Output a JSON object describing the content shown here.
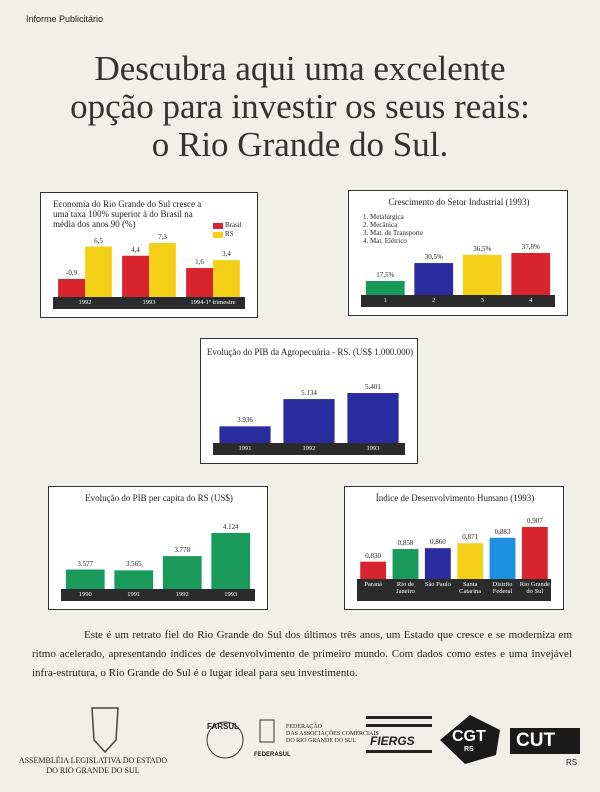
{
  "header": {
    "tag": "Informe Publicitário",
    "headline": [
      "Descubra aqui uma excelente",
      "opção para investir os seus reais:",
      "o Rio Grande do Sul."
    ]
  },
  "chart_data": [
    {
      "type": "bar",
      "title": "Economia do Rio Grande do Sul cresce a uma taxa 100% superior à do Brasil na média dos anos 90 (%)",
      "categories": [
        "1992",
        "1993",
        "1994-1º trimestre"
      ],
      "series": [
        {
          "name": "Brasil",
          "color": "#d8242c",
          "values": [
            -0.9,
            4.4,
            1.6
          ],
          "value_labels": [
            "-0,9",
            "4,4",
            "1,6"
          ]
        },
        {
          "name": "RS",
          "color": "#f4d018",
          "values": [
            6.5,
            7.3,
            3.4
          ],
          "value_labels": [
            "6,5",
            "7,3",
            "3,4"
          ]
        }
      ]
    },
    {
      "type": "bar",
      "title": "Crescimento do Setor Industrial (1993)",
      "legend_items": [
        "1. Metalúrgica",
        "2. Mecânica",
        "3. Mat. de Transporte",
        "4. Mat. Elétrico"
      ],
      "categories": [
        "1",
        "2",
        "3",
        "4"
      ],
      "values": [
        17.5,
        30.5,
        36.5,
        37.8
      ],
      "value_labels": [
        "17,5%",
        "30,5%",
        "36,5%",
        "37,8%"
      ],
      "colors": [
        "#1a9a5a",
        "#2a2ca0",
        "#f4d018",
        "#d8242c"
      ]
    },
    {
      "type": "bar",
      "title": "Evolução do PIB da Agropecuária - RS. (US$ 1.000.000)",
      "categories": [
        "1991",
        "1992",
        "1993"
      ],
      "values": [
        3936,
        5134,
        5401
      ],
      "value_labels": [
        "3.936",
        "5.134",
        "5.401"
      ],
      "color": "#2a2ca0"
    },
    {
      "type": "bar",
      "title": "Evolução do PIB per capita do RS (US$)",
      "categories": [
        "1990",
        "1991",
        "1992",
        "1993"
      ],
      "values": [
        3577,
        3565,
        3778,
        4124
      ],
      "value_labels": [
        "3.577",
        "3.565",
        "3.778",
        "4.124"
      ],
      "color": "#1a9a5a"
    },
    {
      "type": "bar",
      "title": "Índice de Desenvolvimento Humano (1993)",
      "categories": [
        "Paraná",
        "Rio de Janeiro",
        "São Paulo",
        "Santa Catarina",
        "Distrito Federal",
        "Rio Grande do Sul"
      ],
      "values": [
        0.83,
        0.858,
        0.86,
        0.871,
        0.883,
        0.907
      ],
      "value_labels": [
        "0,830",
        "0,858",
        "0,860",
        "0,871",
        "0,883",
        "0,907"
      ],
      "colors": [
        "#d8242c",
        "#1a9a5a",
        "#2a2ca0",
        "#f4d018",
        "#1f8fe0",
        "#d8242c"
      ]
    }
  ],
  "body": "Este é um retrato fiel do Rio Grande do Sul dos últimos três anos, um Estado que cresce e se moderniza em ritmo acelerado, apresentando índices de desenvolvimento de primeiro mundo. Com dados como estes e uma invejável infra-estrutura, o Rio Grande do Sul é o lugar ideal para seu investimento.",
  "footer": {
    "assembly": [
      "ASSEMBLÉIA LEGISLATIVA DO ESTADO",
      "DO RIO GRANDE DO SUL"
    ],
    "farsul": "FARSUL",
    "federasul_text": [
      "FEDERAÇÃO",
      "DAS ASSOCIAÇÕES COMERCIAIS",
      "DO RIO GRANDE DO SUL"
    ],
    "federasul": "FEDERASUL",
    "fiergs": "FIERGS",
    "cgt": "CGT",
    "cgt_state": "RS",
    "cut": "CUT",
    "cut_state": "RS"
  }
}
